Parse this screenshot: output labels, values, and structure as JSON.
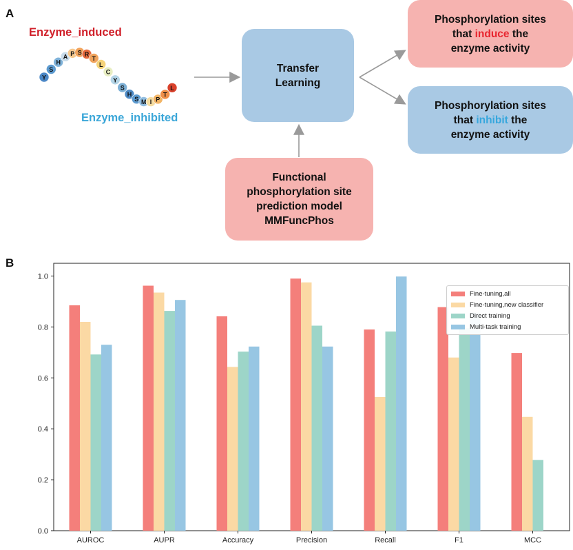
{
  "panel_a": {
    "label": "A",
    "sequence_title_induced": "Enzyme_induced",
    "sequence_title_inhibited": "Enzyme_inhibited",
    "sequence": [
      "Y",
      "S",
      "H",
      "A",
      "P",
      "S",
      "R",
      "T",
      "L",
      "C",
      "Y",
      "S",
      "H",
      "S",
      "M",
      "I",
      "P",
      "T",
      "L"
    ],
    "transfer_box": {
      "line1": "Transfer",
      "line2": "Learning"
    },
    "induce_box": {
      "line1": "Phosphorylation sites",
      "line2_pre": "that ",
      "line2_word": "induce",
      "line2_post": " the",
      "line3": "enzyme activity"
    },
    "inhibit_box": {
      "line1": "Phosphorylation sites",
      "line2_pre": "that ",
      "line2_word": "inhibit",
      "line2_post": " the",
      "line3": "enzyme activity"
    },
    "model_box": {
      "line1": "Functional",
      "line2": "phosphorylation site",
      "line3": "prediction model",
      "line4": "MMFuncPhos"
    }
  },
  "panel_b": {
    "label": "B"
  },
  "colors": {
    "fine_tuning_all": "#f47f7b",
    "fine_tuning_new": "#fbd9a4",
    "direct": "#9dd5c8",
    "multi_task": "#97c6e3",
    "box_red": "#f6b3b0",
    "box_blue": "#a9c9e4",
    "arrow": "#9a9a9a"
  },
  "chart_data": {
    "type": "bar",
    "categories": [
      "AUROC",
      "AUPR",
      "Accuracy",
      "Precision",
      "Recall",
      "F1",
      "MCC"
    ],
    "series": [
      {
        "name": "Fine-tuning,all",
        "values": [
          0.885,
          0.962,
          0.842,
          0.99,
          0.79,
          0.878,
          0.698
        ]
      },
      {
        "name": "Fine-tuning,new classifier",
        "values": [
          0.82,
          0.935,
          0.643,
          0.975,
          0.525,
          0.68,
          0.447
        ]
      },
      {
        "name": "Direct training",
        "values": [
          0.692,
          0.863,
          0.703,
          0.805,
          0.782,
          0.795,
          0.278
        ]
      },
      {
        "name": "Multi-task training",
        "values": [
          0.73,
          0.906,
          0.723,
          0.723,
          0.998,
          0.856,
          0.0
        ]
      }
    ],
    "ylim": [
      0,
      1.05
    ],
    "yticks": [
      "0.0",
      "0.2",
      "0.4",
      "0.6",
      "0.8",
      "1.0"
    ],
    "legend_position": "top-right",
    "grid": false
  }
}
